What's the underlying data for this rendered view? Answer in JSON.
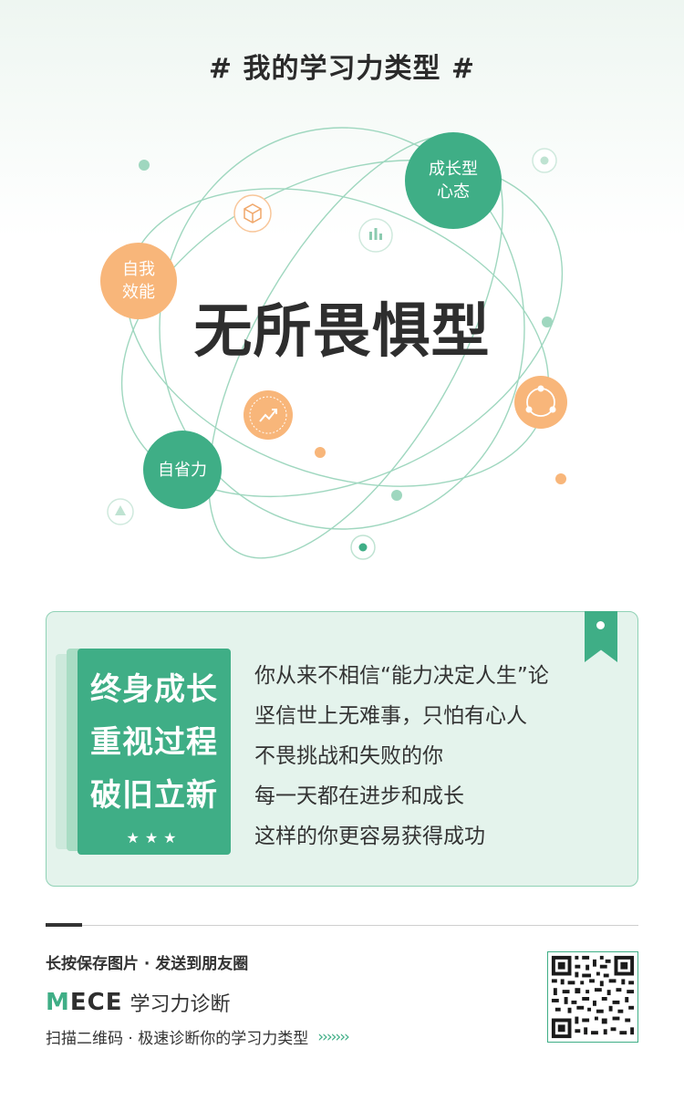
{
  "header": {
    "title": "# 我的学习力类型 #"
  },
  "bubbles": {
    "growth_mindset": "成长型\n心态",
    "self_efficacy": "自我\n效能",
    "self_reflection": "自省力"
  },
  "type_name": "无所畏惧型",
  "card": {
    "tags": [
      "终身成长",
      "重视过程",
      "破旧立新"
    ],
    "stars": "★★★",
    "lines": [
      "你从来不相信“能力决定人生”论",
      "坚信世上无难事，只怕有心人",
      "不畏挑战和失败的你",
      "每一天都在进步和成长",
      "这样的你更容易获得成功"
    ]
  },
  "footer": {
    "save_hint": "长按保存图片 · 发送到朋友圈",
    "brand_logo_prefix": "M",
    "brand_logo_rest": "ECE",
    "brand_name": "学习力诊断",
    "scan_hint": "扫描二维码 · 极速诊断你的学习力类型",
    "arrows": "›››››››"
  },
  "colors": {
    "green": "#3fae86",
    "orange": "#f8b67a",
    "light_green_bg": "#e4f3ec"
  },
  "icons": [
    "cube-icon",
    "bar-chart-icon",
    "trend-up-icon",
    "cycle-icon",
    "triangle-icon",
    "dot-ring-icon",
    "star-icon",
    "bookmark-icon",
    "qr-code"
  ]
}
